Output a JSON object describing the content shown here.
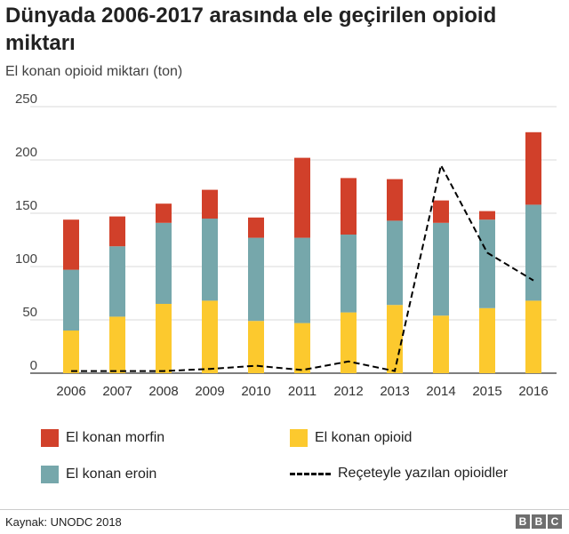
{
  "header": {
    "title": "Dünyada 2006-2017 arasında ele geçirilen opioid miktarı",
    "subtitle": "El konan opioid miktarı (ton)"
  },
  "legend": {
    "morphine": "El konan morfin",
    "opioid": "El konan opioid",
    "heroin": "El konan eroin",
    "prescription": "Reçeteyle yazılan opioidler"
  },
  "footer": {
    "source": "Kaynak: UNODC 2018",
    "logo": [
      "B",
      "B",
      "C"
    ]
  },
  "colors": {
    "morphine": "#d1402a",
    "heroin": "#76a7ab",
    "opioid": "#fcc92e",
    "prescription": "#000000",
    "grid": "#d9d9d9",
    "axis": "#333333"
  },
  "chart_data": {
    "type": "bar",
    "stacked": true,
    "categories": [
      "2006",
      "2007",
      "2008",
      "2009",
      "2010",
      "2011",
      "2012",
      "2013",
      "2014",
      "2015",
      "2016"
    ],
    "series": [
      {
        "name": "El konan opioid",
        "values": [
          40,
          53,
          65,
          68,
          49,
          47,
          57,
          64,
          54,
          61,
          68
        ]
      },
      {
        "name": "El konan eroin",
        "values": [
          57,
          66,
          76,
          77,
          78,
          80,
          73,
          79,
          87,
          83,
          90
        ]
      },
      {
        "name": "El konan morfin",
        "values": [
          47,
          28,
          18,
          27,
          19,
          75,
          53,
          39,
          21,
          8,
          68
        ]
      }
    ],
    "line": {
      "name": "Reçeteyle yazılan opioidler",
      "style": "dashed",
      "values": [
        2,
        2,
        2,
        4,
        7,
        3,
        11,
        2,
        195,
        113,
        87
      ]
    },
    "y_ticks": [
      0,
      50,
      100,
      150,
      200,
      250
    ],
    "ylim": [
      0,
      250
    ],
    "grid": true,
    "legend_position": "bottom"
  }
}
